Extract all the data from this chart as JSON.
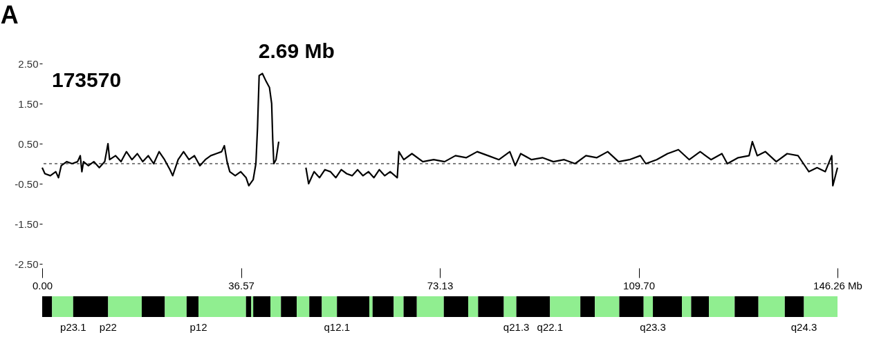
{
  "chart_data": [
    {
      "type": "line",
      "title": "A",
      "x": [
        0,
        0.5,
        1.5,
        2.5,
        3,
        3.5,
        4.5,
        5.5,
        6.5,
        7,
        7.3,
        7.6,
        8.5,
        9.5,
        10.5,
        11.5,
        12.1,
        12.4,
        13.5,
        14.5,
        15.5,
        16.5,
        17.5,
        18.5,
        19.5,
        20.5,
        21.5,
        22.5,
        23.5,
        24,
        25,
        26,
        27,
        28,
        29,
        30,
        31,
        32,
        33,
        33.5,
        34,
        34.5,
        35.5,
        36.5,
        37.5,
        38,
        38.8,
        39.3,
        39.6,
        39.9,
        40.5,
        41.2,
        41.8,
        42.2,
        42.4,
        42.6,
        43,
        43.5,
        45,
        48.5,
        49,
        50,
        51,
        52,
        53,
        54,
        55,
        56,
        57,
        58,
        59,
        60,
        61,
        62,
        63,
        64,
        65.3,
        65.6,
        66.5,
        68,
        70,
        72,
        74,
        76,
        78,
        80,
        82,
        84,
        86,
        87,
        88,
        90,
        92,
        94,
        96,
        98,
        100,
        102,
        104,
        106,
        108,
        110,
        111,
        113,
        115,
        117,
        119,
        121,
        123,
        125,
        126,
        128,
        130,
        130.6,
        131.5,
        133,
        135,
        137,
        139,
        140,
        141,
        142.5,
        144,
        145.2,
        145.4,
        146.26
      ],
      "series": [
        {
          "color": "#000000",
          "values": [
            -0.1,
            -0.25,
            -0.3,
            -0.2,
            -0.35,
            -0.05,
            0.05,
            0.0,
            0.05,
            0.2,
            -0.2,
            0.05,
            -0.05,
            0.05,
            -0.1,
            0.05,
            0.5,
            0.1,
            0.2,
            0.05,
            0.3,
            0.1,
            0.25,
            0.05,
            0.2,
            0.0,
            0.3,
            0.1,
            -0.15,
            -0.3,
            0.1,
            0.3,
            0.1,
            0.2,
            -0.05,
            0.1,
            0.2,
            0.25,
            0.3,
            0.45,
            0.05,
            -0.2,
            -0.3,
            -0.2,
            -0.35,
            -0.55,
            -0.4,
            0.0,
            0.9,
            2.2,
            2.25,
            2.05,
            1.9,
            1.5,
            0.6,
            0.0,
            0.1,
            0.55,
            null,
            -0.1,
            -0.5,
            -0.2,
            -0.35,
            -0.15,
            -0.2,
            -0.35,
            -0.15,
            -0.25,
            -0.3,
            -0.15,
            -0.3,
            -0.2,
            -0.35,
            -0.15,
            -0.3,
            -0.2,
            -0.35,
            0.3,
            0.1,
            0.25,
            0.05,
            0.1,
            0.05,
            0.2,
            0.15,
            0.3,
            0.2,
            0.1,
            0.3,
            -0.05,
            0.25,
            0.1,
            0.15,
            0.05,
            0.1,
            0.0,
            0.2,
            0.15,
            0.3,
            0.05,
            0.1,
            0.2,
            0.0,
            0.1,
            0.25,
            0.35,
            0.1,
            0.3,
            0.1,
            0.25,
            0.0,
            0.15,
            0.2,
            0.55,
            0.2,
            0.3,
            0.05,
            0.25,
            0.2,
            0.0,
            -0.2,
            -0.1,
            -0.2,
            0.2,
            -0.55,
            -0.1
          ]
        }
      ],
      "xlim": [
        0,
        146.26
      ],
      "xticks": [
        {
          "value": 0,
          "label": "0.00"
        },
        36.57,
        73.13,
        {
          "value": 109.7,
          "label": "109.70"
        },
        {
          "value": 146.26,
          "label": "146.26 Mb"
        }
      ],
      "ylim": [
        -2.5,
        2.5
      ],
      "yticks": [
        {
          "value": 2.5,
          "label": "2.50"
        },
        {
          "value": 1.5,
          "label": "1.50"
        },
        {
          "value": 0.5,
          "label": "0.50"
        },
        {
          "value": -0.5,
          "label": "-0.50"
        },
        {
          "value": -1.5,
          "label": "-1.50"
        },
        {
          "value": -2.5,
          "label": "-2.50"
        }
      ],
      "ref_lines": [
        {
          "axis": "y",
          "value": 0,
          "line_style": "dashed",
          "color": "#000000"
        }
      ],
      "annotations": [
        "173570",
        "2.69 Mb"
      ],
      "grid": false,
      "legend": false,
      "marker": "none",
      "line_style": "solid"
    },
    {
      "type": "bar",
      "orientation": "horizontal",
      "stacked": true,
      "categories": [
        null
      ],
      "xlim": [
        0,
        146.26
      ],
      "tick_labels": false,
      "legend": false,
      "grid": false,
      "series": [
        {
          "color": "#000000",
          "values": [
            1.82
          ]
        },
        {
          "color": "#90ee90",
          "values": [
            3.88
          ]
        },
        {
          "name": "p23.1",
          "color": "#000000",
          "values": [
            6.43
          ]
        },
        {
          "name": "p22",
          "color": "#90ee90",
          "values": [
            6.18
          ]
        },
        {
          "color": "#000000",
          "values": [
            4.25
          ]
        },
        {
          "color": "#90ee90",
          "values": [
            4.0
          ]
        },
        {
          "color": "#000000",
          "values": [
            2.18
          ]
        },
        {
          "name": "p12",
          "color": "#90ee90",
          "values": [
            8.74
          ]
        },
        {
          "color": "#000000",
          "values": [
            0.97
          ]
        },
        {
          "color": "#90ee90",
          "values": [
            0.36
          ]
        },
        {
          "color": "#000000",
          "values": [
            3.16
          ]
        },
        {
          "color": "#90ee90",
          "values": [
            1.94
          ]
        },
        {
          "color": "#000000",
          "values": [
            2.91
          ]
        },
        {
          "color": "#90ee90",
          "values": [
            2.3
          ]
        },
        {
          "color": "#000000",
          "values": [
            2.31
          ]
        },
        {
          "color": "#90ee90",
          "values": [
            2.78
          ]
        },
        {
          "name": "q12.1",
          "color": "#000000",
          "values": [
            5.95
          ]
        },
        {
          "color": "#90ee90",
          "values": [
            0.6
          ]
        },
        {
          "color": "#000000",
          "values": [
            3.89
          ]
        },
        {
          "color": "#90ee90",
          "values": [
            1.81
          ]
        },
        {
          "color": "#000000",
          "values": [
            2.44
          ]
        },
        {
          "color": "#90ee90",
          "values": [
            4.96
          ]
        },
        {
          "color": "#000000",
          "values": [
            4.49
          ]
        },
        {
          "color": "#90ee90",
          "values": [
            1.82
          ]
        },
        {
          "color": "#000000",
          "values": [
            4.73
          ]
        },
        {
          "color": "#90ee90",
          "values": [
            2.3
          ]
        },
        {
          "name": "q21.3",
          "color": "#000000",
          "values": [
            6.19
          ]
        },
        {
          "name": "q22.1",
          "color": "#90ee90",
          "values": [
            5.58
          ]
        },
        {
          "color": "#000000",
          "values": [
            2.67
          ]
        },
        {
          "color": "#90ee90",
          "values": [
            4.49
          ]
        },
        {
          "color": "#000000",
          "values": [
            4.48
          ]
        },
        {
          "color": "#90ee90",
          "values": [
            1.7
          ]
        },
        {
          "name": "q23.3",
          "color": "#000000",
          "values": [
            5.34
          ]
        },
        {
          "color": "#90ee90",
          "values": [
            1.7
          ]
        },
        {
          "color": "#000000",
          "values": [
            3.27
          ]
        },
        {
          "color": "#90ee90",
          "values": [
            4.73
          ]
        },
        {
          "color": "#000000",
          "values": [
            4.37
          ]
        },
        {
          "color": "#90ee90",
          "values": [
            4.85
          ]
        },
        {
          "color": "#000000",
          "values": [
            3.52
          ]
        },
        {
          "name": "q24.3",
          "color": "#90ee90",
          "values": [
            6.17
          ]
        }
      ]
    }
  ]
}
